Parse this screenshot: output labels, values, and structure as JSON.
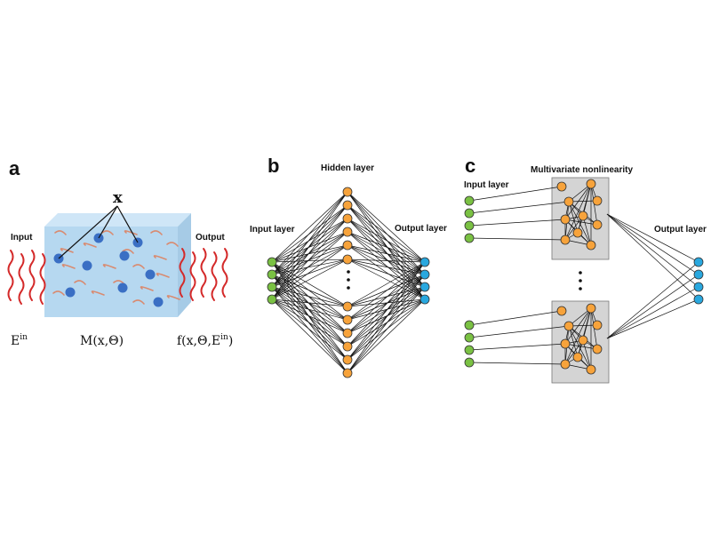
{
  "panels": {
    "a": {
      "letter": "a",
      "input_label": "Input",
      "output_label": "Output",
      "x_label": "x",
      "e_in": "E",
      "e_in_sup": "in",
      "m_label": "M(x,Θ)",
      "f_label_main": "f(x,Θ,E",
      "f_label_sup": "in",
      "f_label_close": ")"
    },
    "b": {
      "letter": "b",
      "hidden_label": "Hidden layer",
      "input_label": "Input layer",
      "output_label": "Output layer"
    },
    "c": {
      "letter": "c",
      "nonlin_label": "Multivariate nonlinearity",
      "input_label": "Input layer",
      "output_label": "Output layer"
    }
  },
  "colors": {
    "input_node": "#7ac143",
    "hidden_node": "#f7a33b",
    "output_node": "#29a8df",
    "block_face": "#b6d8f0",
    "particle": "#3a6fc4",
    "wave": "#d42a2a",
    "box": "#d4d4d4"
  }
}
